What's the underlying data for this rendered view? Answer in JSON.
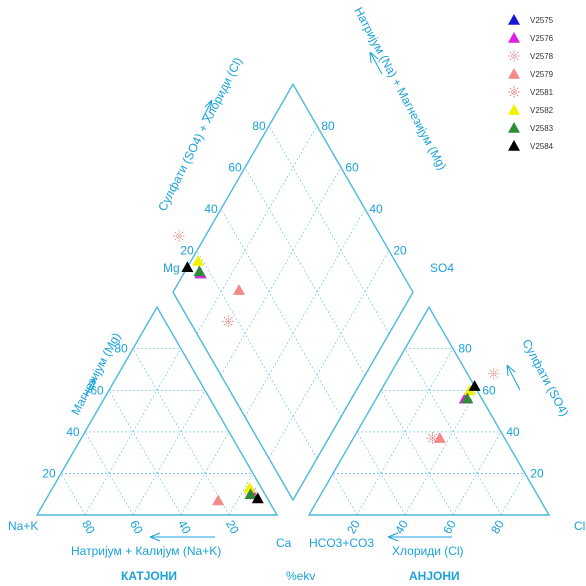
{
  "chart_data": {
    "type": "piper",
    "units_label": "%ekv",
    "cation_title": "КАТЈОНИ",
    "anion_title": "АНЈОНИ",
    "labels": {
      "mg": "Mg",
      "nak": "Na+K",
      "ca": "Ca",
      "so4": "SO4",
      "hco3": "HCO3+CO3",
      "cl": "Cl",
      "cation_bottom_axis": "Натријум + Калијум (Na+K)",
      "cation_left_axis": "Магнезијум (Mg)",
      "anion_bottom_axis": "Хлориди (Cl)",
      "anion_right_axis": "Сулфати (SO4)",
      "diamond_left_axis": "Сулфати (SO4) + Хлориди (Cl)",
      "diamond_right_axis": "Натријум (Na) + Магнезијум (Mg)"
    },
    "ticks": [
      "20",
      "40",
      "60",
      "80"
    ],
    "legend": [
      {
        "name": "V2575",
        "marker": "triangle",
        "color": "#1515d6"
      },
      {
        "name": "V2576",
        "marker": "triangle",
        "color": "#e020e0"
      },
      {
        "name": "V2578",
        "marker": "star",
        "color": "#e88080"
      },
      {
        "name": "V2579",
        "marker": "triangle",
        "color": "#f28a8a"
      },
      {
        "name": "V2581",
        "marker": "star",
        "color": "#e06a6a"
      },
      {
        "name": "V2582",
        "marker": "triangle",
        "color": "#f2f200"
      },
      {
        "name": "V2583",
        "marker": "triangle",
        "color": "#2e8b3a"
      },
      {
        "name": "V2584",
        "marker": "triangle",
        "color": "#000000"
      }
    ],
    "samples": [
      {
        "name": "V2575",
        "cation": {
          "ca": 84,
          "mg": 10,
          "nak": 6
        },
        "anion": {
          "cl": 37,
          "so4": 56
        }
      },
      {
        "name": "V2576",
        "cation": {
          "ca": 84,
          "mg": 11,
          "nak": 5
        },
        "anion": {
          "cl": 37,
          "so4": 56
        }
      },
      {
        "name": "V2578",
        "cation": {
          "ca": 84,
          "mg": 11,
          "nak": 5
        },
        "anion": {
          "cl": 43,
          "so4": 68
        }
      },
      {
        "name": "V2579",
        "cation": {
          "ca": 72,
          "mg": 7,
          "nak": 21
        },
        "anion": {
          "cl": 36,
          "so4": 37
        }
      },
      {
        "name": "V2581",
        "cation": {
          "ca": 84,
          "mg": 10,
          "nak": 6
        },
        "anion": {
          "cl": 33,
          "so4": 37
        }
      },
      {
        "name": "V2582",
        "cation": {
          "ca": 82,
          "mg": 13,
          "nak": 5
        },
        "anion": {
          "cl": 37,
          "so4": 60
        }
      },
      {
        "name": "V2583",
        "cation": {
          "ca": 84,
          "mg": 10,
          "nak": 6
        },
        "anion": {
          "cl": 38,
          "so4": 56
        }
      },
      {
        "name": "V2584",
        "cation": {
          "ca": 88,
          "mg": 8,
          "nak": 4
        },
        "anion": {
          "cl": 38,
          "so4": 62
        }
      }
    ]
  }
}
